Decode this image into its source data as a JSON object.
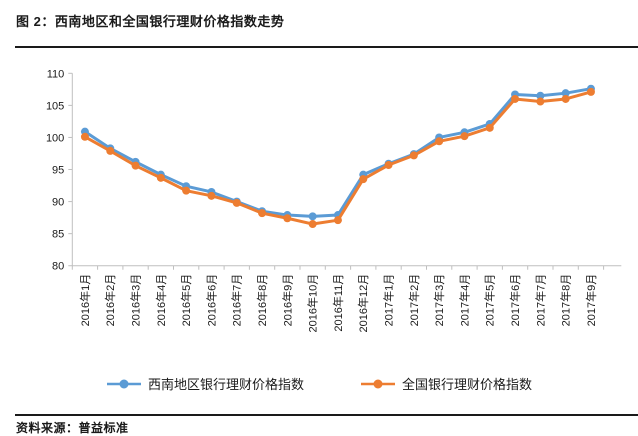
{
  "header": {
    "title": "图 2：西南地区和全国银行理财价格指数走势"
  },
  "footer": {
    "source": "资料来源：普益标准"
  },
  "colors": {
    "southwest": "#5B9BD5",
    "national": "#ED7D31",
    "axis": "#BFBFBF",
    "tick_text": "#1a1a1a"
  },
  "chart_data": {
    "type": "line",
    "title": "西南地区和全国银行理财价格指数走势",
    "xlabel": "",
    "ylabel": "",
    "ylim": [
      80,
      110
    ],
    "ytick_step": 5,
    "grid": false,
    "legend_position": "bottom",
    "marker": "circle",
    "categories": [
      "2016年1月",
      "2016年2月",
      "2016年3月",
      "2016年4月",
      "2016年5月",
      "2016年6月",
      "2016年7月",
      "2016年8月",
      "2016年9月",
      "2016年10月",
      "2016年11月",
      "2016年12月",
      "2017年1月",
      "2017年2月",
      "2017年3月",
      "2017年4月",
      "2017年5月",
      "2017年6月",
      "2017年7月",
      "2017年8月",
      "2017年9月"
    ],
    "series": [
      {
        "name": "西南地区银行理财价格指数",
        "color_key": "southwest",
        "values": [
          100.9,
          98.3,
          96.2,
          94.2,
          92.4,
          91.5,
          90.0,
          88.5,
          87.9,
          87.7,
          87.9,
          94.2,
          95.9,
          97.4,
          100.0,
          100.8,
          102.1,
          106.7,
          106.5,
          106.9,
          107.6
        ]
      },
      {
        "name": "全国银行理财价格指数",
        "color_key": "national",
        "values": [
          100.1,
          97.9,
          95.6,
          93.7,
          91.7,
          90.9,
          89.8,
          88.2,
          87.4,
          86.5,
          87.1,
          93.5,
          95.7,
          97.2,
          99.4,
          100.2,
          101.5,
          106.0,
          105.6,
          106.0,
          107.1
        ]
      }
    ]
  }
}
